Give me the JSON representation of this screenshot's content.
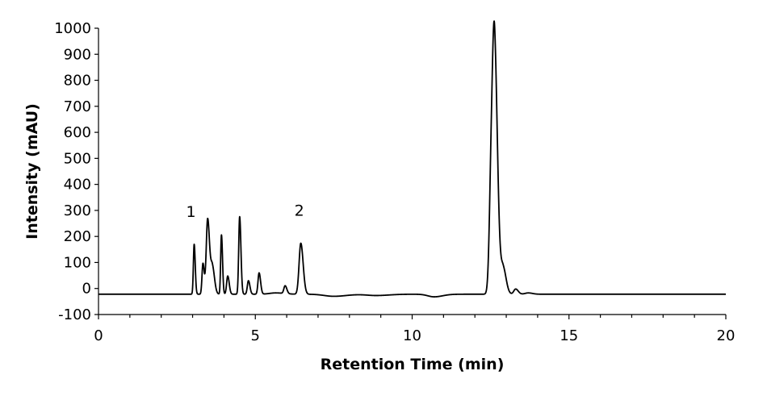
{
  "chart_data": {
    "type": "line",
    "xlabel": "Retention Time (min)",
    "ylabel": "Intensity (mAU)",
    "xlim": [
      0,
      20
    ],
    "ylim": [
      -100,
      1000
    ],
    "xticks": [
      0,
      5,
      10,
      15,
      20
    ],
    "xticks_minor_step": 1,
    "yticks": [
      -100,
      0,
      100,
      200,
      300,
      400,
      500,
      600,
      700,
      800,
      900,
      1000
    ],
    "grid": false,
    "legend": "none",
    "annotations": [
      {
        "text": "1",
        "x": 2.95,
        "y": 275
      },
      {
        "text": "2",
        "x": 6.4,
        "y": 280
      }
    ],
    "series": [
      {
        "baseline": -22,
        "x_range": [
          0,
          20
        ],
        "peaks": [
          {
            "rt": 3.05,
            "height": 192,
            "width": 0.025
          },
          {
            "rt": 3.33,
            "height": 118,
            "width": 0.03
          },
          {
            "rt": 3.48,
            "height": 290,
            "width": 0.045
          },
          {
            "rt": 3.63,
            "height": 105,
            "width": 0.05
          },
          {
            "rt": 3.92,
            "height": 228,
            "width": 0.025
          },
          {
            "rt": 4.12,
            "height": 70,
            "width": 0.035
          },
          {
            "rt": 4.5,
            "height": 298,
            "width": 0.03
          },
          {
            "rt": 4.78,
            "height": 52,
            "width": 0.035
          },
          {
            "rt": 5.12,
            "height": 82,
            "width": 0.035
          },
          {
            "rt": 5.65,
            "height": 5,
            "width": 0.2
          },
          {
            "rt": 5.95,
            "height": 30,
            "width": 0.04
          },
          {
            "rt": 6.45,
            "height": 196,
            "width": 0.055
          },
          {
            "rt": 7.5,
            "height": -8,
            "width": 0.3
          },
          {
            "rt": 8.85,
            "height": -5,
            "width": 0.3
          },
          {
            "rt": 10.7,
            "height": -10,
            "width": 0.2
          },
          {
            "rt": 12.52,
            "height": 400,
            "width": 0.06
          },
          {
            "rt": 12.63,
            "height": 868,
            "width": 0.07
          },
          {
            "rt": 12.9,
            "height": 100,
            "width": 0.07
          },
          {
            "rt": 13.3,
            "height": 20,
            "width": 0.06
          },
          {
            "rt": 13.7,
            "height": 5,
            "width": 0.1
          }
        ]
      }
    ]
  }
}
